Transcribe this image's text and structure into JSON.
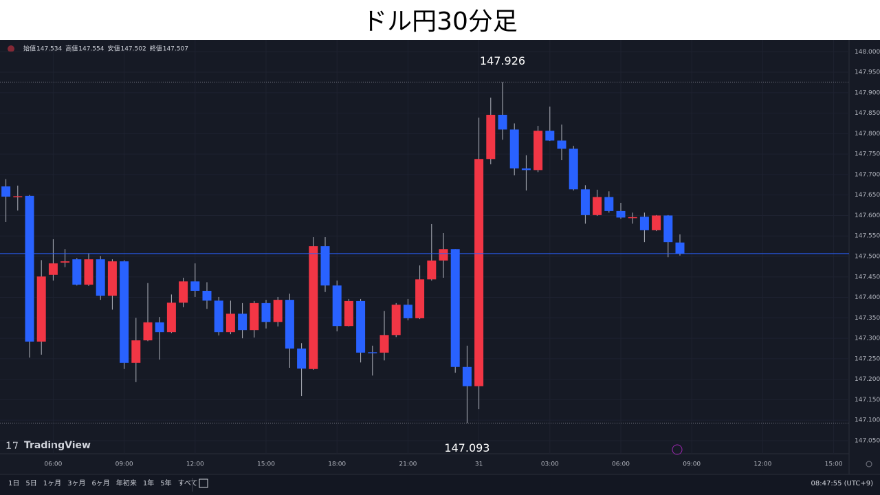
{
  "chart_data": {
    "type": "candlestick",
    "title": "ドル円30分足",
    "categories": [
      null,
      null,
      null,
      null,
      "06:00",
      null,
      null,
      null,
      null,
      null,
      "09:00",
      null,
      null,
      null,
      null,
      null,
      "12:00",
      null,
      null,
      null,
      null,
      null,
      "15:00",
      null,
      null,
      null,
      null,
      null,
      "18:00",
      null,
      null,
      null,
      null,
      null,
      "21:00",
      null,
      null,
      null,
      null,
      null,
      "31",
      null,
      null,
      null,
      null,
      null,
      "03:00",
      null,
      null,
      null,
      null,
      null,
      "06:00",
      null,
      null,
      null,
      null,
      null,
      "09:00",
      null,
      null,
      null,
      null,
      null,
      "12:00",
      null,
      null,
      null,
      null,
      null,
      "15:00"
    ],
    "open": [
      147.671,
      147.645,
      147.648,
      147.292,
      147.455,
      147.485,
      147.493,
      147.431,
      147.493,
      147.404,
      147.488,
      147.24,
      147.295,
      147.339,
      147.315,
      147.387,
      147.439,
      147.416,
      147.392,
      147.315,
      147.36,
      147.32,
      147.386,
      147.34,
      147.394,
      147.275,
      147.225,
      147.525,
      147.429,
      147.33,
      147.391,
      147.266,
      147.265,
      147.308,
      147.382,
      147.349,
      147.444,
      147.49,
      147.518,
      147.23,
      147.183,
      147.738,
      147.846,
      147.81,
      147.715,
      147.711,
      147.807,
      147.783,
      147.763,
      147.664,
      147.601,
      147.645,
      147.611,
      147.594,
      147.597,
      147.564,
      147.6,
      147.534,
      null,
      null,
      null,
      null,
      null,
      null,
      null,
      null,
      null,
      null,
      null,
      null,
      null
    ],
    "high": [
      147.689,
      147.673,
      147.65,
      147.491,
      147.542,
      147.518,
      147.496,
      147.508,
      147.501,
      147.493,
      147.491,
      147.35,
      147.435,
      147.352,
      147.407,
      147.448,
      147.483,
      147.437,
      147.401,
      147.392,
      147.386,
      147.391,
      147.394,
      147.401,
      147.409,
      147.288,
      147.547,
      147.547,
      147.441,
      147.396,
      147.396,
      147.282,
      147.367,
      147.386,
      147.396,
      147.478,
      147.579,
      147.557,
      147.518,
      147.282,
      147.839,
      147.888,
      147.926,
      147.825,
      147.747,
      147.819,
      147.866,
      147.822,
      147.77,
      147.674,
      147.663,
      147.659,
      147.631,
      147.607,
      147.607,
      147.601,
      147.601,
      147.554,
      null,
      null,
      null,
      null,
      null,
      null,
      null,
      null,
      null,
      null,
      null,
      null,
      null
    ],
    "low": [
      147.584,
      147.612,
      147.253,
      147.26,
      147.441,
      147.474,
      147.429,
      147.428,
      147.394,
      147.37,
      147.225,
      147.193,
      147.293,
      147.248,
      147.313,
      147.376,
      147.401,
      147.372,
      147.307,
      147.31,
      147.3,
      147.302,
      147.324,
      147.329,
      147.228,
      147.159,
      147.223,
      147.413,
      147.317,
      147.329,
      147.241,
      147.209,
      147.246,
      147.303,
      147.344,
      147.347,
      147.441,
      147.448,
      147.216,
      147.093,
      147.127,
      147.725,
      147.785,
      147.698,
      147.661,
      147.706,
      147.782,
      147.735,
      147.661,
      147.58,
      147.599,
      147.607,
      147.592,
      147.58,
      147.535,
      147.562,
      147.498,
      147.502,
      null,
      null,
      null,
      null,
      null,
      null,
      null,
      null,
      null,
      null,
      null,
      null,
      null
    ],
    "close": [
      147.646,
      147.647,
      147.292,
      147.451,
      147.483,
      147.488,
      147.431,
      147.493,
      147.404,
      147.488,
      147.24,
      147.295,
      147.339,
      147.315,
      147.387,
      147.439,
      147.416,
      147.392,
      147.315,
      147.36,
      147.32,
      147.386,
      147.34,
      147.394,
      147.275,
      147.226,
      147.525,
      147.429,
      147.33,
      147.391,
      147.265,
      147.264,
      147.308,
      147.382,
      147.349,
      147.444,
      147.49,
      147.518,
      147.23,
      147.183,
      147.738,
      147.846,
      147.81,
      147.715,
      147.711,
      147.807,
      147.783,
      147.763,
      147.664,
      147.601,
      147.645,
      147.611,
      147.595,
      147.596,
      147.564,
      147.6,
      147.535,
      147.507,
      null,
      null,
      null,
      null,
      null,
      null,
      null,
      null,
      null,
      null,
      null,
      null,
      null
    ],
    "up_color": "#f23645",
    "down_color": "#2962ff",
    "ylim": [
      147.018,
      148.029
    ],
    "yticks": [
      {
        "value": 148.0,
        "label": "148.000"
      },
      {
        "value": 147.95,
        "label": "147.950"
      },
      {
        "value": 147.9,
        "label": "147.900"
      },
      {
        "value": 147.85,
        "label": "147.850"
      },
      {
        "value": 147.8,
        "label": "147.800"
      },
      {
        "value": 147.75,
        "label": "147.750"
      },
      {
        "value": 147.7,
        "label": "147.700"
      },
      {
        "value": 147.65,
        "label": "147.650"
      },
      {
        "value": 147.6,
        "label": "147.600"
      },
      {
        "value": 147.55,
        "label": "147.550"
      },
      {
        "value": 147.5,
        "label": "147.500"
      },
      {
        "value": 147.45,
        "label": "147.450"
      },
      {
        "value": 147.4,
        "label": "147.400"
      },
      {
        "value": 147.35,
        "label": "147.350"
      },
      {
        "value": 147.3,
        "label": "147.300"
      },
      {
        "value": 147.25,
        "label": "147.250"
      },
      {
        "value": 147.2,
        "label": "147.200"
      },
      {
        "value": 147.15,
        "label": "147.150"
      },
      {
        "value": 147.1,
        "label": "147.100"
      },
      {
        "value": 147.05,
        "label": "147.050"
      }
    ],
    "grid": true,
    "high_marker": 147.926,
    "low_marker": 147.093,
    "ohlc_legend": [
      {
        "label": "始値",
        "value": 147.534
      },
      {
        "label": "高値",
        "value": 147.554
      },
      {
        "label": "安値",
        "value": 147.502
      },
      {
        "label": "終値",
        "value": 147.507
      }
    ]
  },
  "branding": "TradingView",
  "toolbar": {
    "ranges": [
      "1日",
      "5日",
      "1ヶ月",
      "3ヶ月",
      "6ヶ月",
      "年初来",
      "1年",
      "5年",
      "すべて"
    ],
    "clock": "08:47:55 (UTC+9)"
  }
}
